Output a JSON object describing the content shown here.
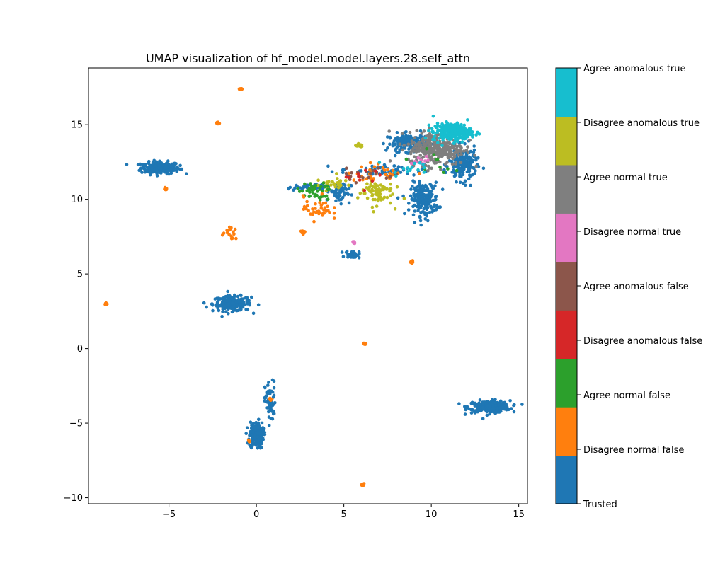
{
  "chart_data": {
    "type": "scatter",
    "title": "UMAP visualization of hf_model.model.layers.28.self_attn",
    "xlabel": "",
    "ylabel": "",
    "xlim": [
      -9.6,
      15.5
    ],
    "ylim": [
      -10.4,
      18.8
    ],
    "xticks": [
      -5,
      0,
      5,
      10,
      15
    ],
    "yticks": [
      -10,
      -5,
      0,
      5,
      10,
      15
    ],
    "xtick_labels": [
      "−5",
      "0",
      "5",
      "10",
      "15"
    ],
    "ytick_labels": [
      "−10",
      "−5",
      "0",
      "5",
      "10",
      "15"
    ],
    "grid": false,
    "legend": "colorbar-right",
    "colorbar": {
      "labels": [
        "Trusted",
        "Disagree normal false",
        "Agree normal false",
        "Disagree anomalous false",
        "Agree anomalous false",
        "Disagree normal true",
        "Agree normal true",
        "Disagree anomalous true",
        "Agree anomalous true"
      ],
      "colors": [
        "#1f77b4",
        "#ff7f0e",
        "#2ca02c",
        "#d62728",
        "#8c564b",
        "#e377c2",
        "#7f7f7f",
        "#bcbd22",
        "#17becf"
      ]
    },
    "clusters": [
      {
        "class": 0,
        "cx": -5.5,
        "cy": 12.1,
        "sx": 0.55,
        "sy": 0.2,
        "n": 220
      },
      {
        "class": 0,
        "cx": -1.4,
        "cy": 3.0,
        "sx": 0.55,
        "sy": 0.25,
        "n": 200
      },
      {
        "class": 0,
        "cx": 13.3,
        "cy": -3.9,
        "sx": 0.6,
        "sy": 0.2,
        "n": 240
      },
      {
        "class": 0,
        "cx": 0.0,
        "cy": -5.8,
        "sx": 0.2,
        "sy": 0.45,
        "n": 160
      },
      {
        "class": 0,
        "cx": 0.8,
        "cy": -3.6,
        "sx": 0.15,
        "sy": 0.7,
        "n": 60
      },
      {
        "class": 0,
        "cx": 9.6,
        "cy": 10.0,
        "sx": 0.4,
        "sy": 0.55,
        "n": 200
      },
      {
        "class": 0,
        "cx": 8.7,
        "cy": 13.8,
        "sx": 0.6,
        "sy": 0.3,
        "n": 160
      },
      {
        "class": 0,
        "cx": 11.8,
        "cy": 12.3,
        "sx": 0.4,
        "sy": 0.55,
        "n": 160
      },
      {
        "class": 0,
        "cx": 5.5,
        "cy": 6.3,
        "sx": 0.2,
        "sy": 0.12,
        "n": 40
      },
      {
        "class": 0,
        "cx": 4.8,
        "cy": 10.5,
        "sx": 0.3,
        "sy": 0.35,
        "n": 60
      },
      {
        "class": 0,
        "cx": 3.0,
        "cy": 10.8,
        "sx": 0.6,
        "sy": 0.1,
        "n": 50
      },
      {
        "class": 0,
        "cx": 7.2,
        "cy": 11.9,
        "sx": 1.2,
        "sy": 0.2,
        "n": 60
      },
      {
        "class": 6,
        "cx": 10.3,
        "cy": 13.4,
        "sx": 0.8,
        "sy": 0.55,
        "n": 300
      },
      {
        "class": 8,
        "cx": 11.2,
        "cy": 14.5,
        "sx": 0.55,
        "sy": 0.3,
        "n": 260
      },
      {
        "class": 7,
        "cx": 6.8,
        "cy": 10.5,
        "sx": 0.5,
        "sy": 0.45,
        "n": 70
      },
      {
        "class": 7,
        "cx": 5.9,
        "cy": 13.6,
        "sx": 0.1,
        "sy": 0.06,
        "n": 12
      },
      {
        "class": 7,
        "cx": 4.4,
        "cy": 11.0,
        "sx": 0.5,
        "sy": 0.2,
        "n": 30
      },
      {
        "class": 2,
        "cx": 3.3,
        "cy": 10.5,
        "sx": 0.5,
        "sy": 0.3,
        "n": 40
      },
      {
        "class": 1,
        "cx": 3.5,
        "cy": 9.4,
        "sx": 0.4,
        "sy": 0.4,
        "n": 40
      },
      {
        "class": 1,
        "cx": -2.2,
        "cy": 15.1,
        "sx": 0.04,
        "sy": 0.04,
        "n": 10
      },
      {
        "class": 1,
        "cx": -0.9,
        "cy": 17.4,
        "sx": 0.05,
        "sy": 0.03,
        "n": 12
      },
      {
        "class": 1,
        "cx": -5.2,
        "cy": 10.7,
        "sx": 0.04,
        "sy": 0.06,
        "n": 10
      },
      {
        "class": 1,
        "cx": -1.5,
        "cy": 7.7,
        "sx": 0.2,
        "sy": 0.2,
        "n": 16
      },
      {
        "class": 1,
        "cx": 2.7,
        "cy": 7.8,
        "sx": 0.08,
        "sy": 0.08,
        "n": 10
      },
      {
        "class": 1,
        "cx": 8.9,
        "cy": 5.8,
        "sx": 0.05,
        "sy": 0.04,
        "n": 10
      },
      {
        "class": 1,
        "cx": 6.2,
        "cy": 0.3,
        "sx": 0.04,
        "sy": 0.04,
        "n": 10
      },
      {
        "class": 1,
        "cx": 6.1,
        "cy": -9.1,
        "sx": 0.05,
        "sy": 0.03,
        "n": 10
      },
      {
        "class": 1,
        "cx": -8.6,
        "cy": 3.0,
        "sx": 0.04,
        "sy": 0.04,
        "n": 8
      },
      {
        "class": 1,
        "cx": 0.8,
        "cy": -3.4,
        "sx": 0.05,
        "sy": 0.05,
        "n": 6
      },
      {
        "class": 1,
        "cx": -0.4,
        "cy": -6.2,
        "sx": 0.04,
        "sy": 0.04,
        "n": 5
      },
      {
        "class": 1,
        "cx": 7.0,
        "cy": 11.8,
        "sx": 0.9,
        "sy": 0.3,
        "n": 30
      },
      {
        "class": 5,
        "cx": 5.6,
        "cy": 7.1,
        "sx": 0.04,
        "sy": 0.04,
        "n": 6
      },
      {
        "class": 5,
        "cx": 9.4,
        "cy": 12.5,
        "sx": 0.3,
        "sy": 0.2,
        "n": 12
      },
      {
        "class": 4,
        "cx": 6.3,
        "cy": 11.7,
        "sx": 0.8,
        "sy": 0.3,
        "n": 20
      },
      {
        "class": 3,
        "cx": 5.8,
        "cy": 11.5,
        "sx": 0.6,
        "sy": 0.3,
        "n": 10
      },
      {
        "class": 2,
        "cx": 10.0,
        "cy": 12.4,
        "sx": 0.6,
        "sy": 0.4,
        "n": 10
      },
      {
        "class": 8,
        "cx": 8.8,
        "cy": 12.2,
        "sx": 0.6,
        "sy": 0.3,
        "n": 15
      }
    ]
  }
}
